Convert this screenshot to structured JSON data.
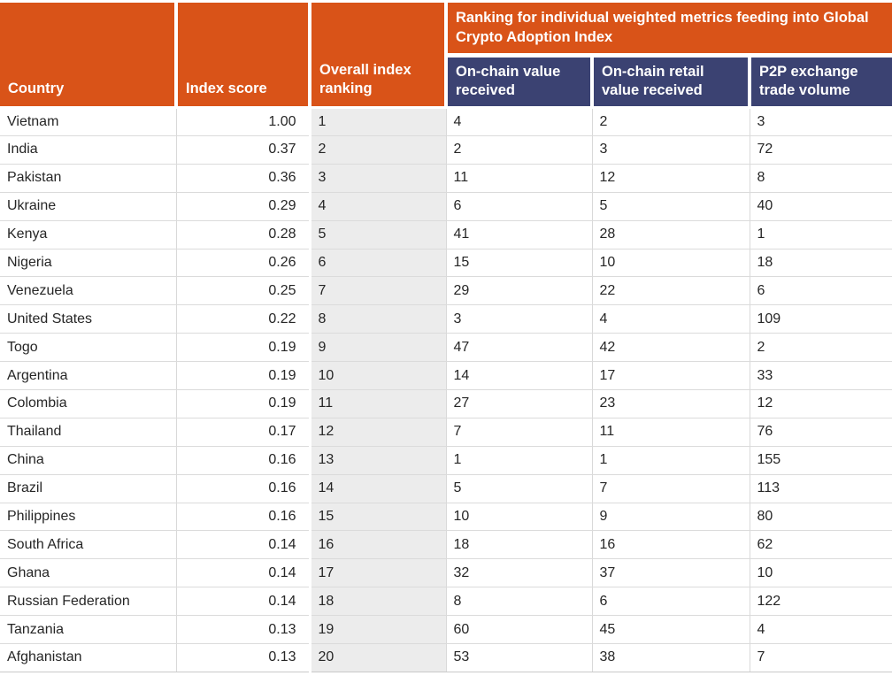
{
  "colors": {
    "header_orange": "#D95318",
    "header_navy": "#3B4272",
    "rank_column_bg": "#ECECEC",
    "row_border": "#DBDBDB",
    "header_text": "#FFFFFF",
    "body_text": "#262626"
  },
  "header": {
    "country": "Country",
    "index_score": "Index score",
    "overall_ranking": "Overall index ranking",
    "banner": "Ranking for individual weighted metrics feeding into Global Crypto Adoption Index",
    "onchain_value": "On-chain value received",
    "onchain_retail": "On-chain retail value received",
    "p2p_volume": "P2P exchange trade volume"
  },
  "chart_data": {
    "type": "table",
    "title": "Ranking for individual weighted metrics feeding into Global Crypto Adoption Index",
    "columns": [
      "Country",
      "Index score",
      "Overall index ranking",
      "On-chain value received",
      "On-chain retail value received",
      "P2P exchange trade volume"
    ],
    "rows": [
      [
        "Vietnam",
        "1.00",
        "1",
        "4",
        "2",
        "3"
      ],
      [
        "India",
        "0.37",
        "2",
        "2",
        "3",
        "72"
      ],
      [
        "Pakistan",
        "0.36",
        "3",
        "11",
        "12",
        "8"
      ],
      [
        "Ukraine",
        "0.29",
        "4",
        "6",
        "5",
        "40"
      ],
      [
        "Kenya",
        "0.28",
        "5",
        "41",
        "28",
        "1"
      ],
      [
        "Nigeria",
        "0.26",
        "6",
        "15",
        "10",
        "18"
      ],
      [
        "Venezuela",
        "0.25",
        "7",
        "29",
        "22",
        "6"
      ],
      [
        "United States",
        "0.22",
        "8",
        "3",
        "4",
        "109"
      ],
      [
        "Togo",
        "0.19",
        "9",
        "47",
        "42",
        "2"
      ],
      [
        "Argentina",
        "0.19",
        "10",
        "14",
        "17",
        "33"
      ],
      [
        "Colombia",
        "0.19",
        "11",
        "27",
        "23",
        "12"
      ],
      [
        "Thailand",
        "0.17",
        "12",
        "7",
        "11",
        "76"
      ],
      [
        "China",
        "0.16",
        "13",
        "1",
        "1",
        "155"
      ],
      [
        "Brazil",
        "0.16",
        "14",
        "5",
        "7",
        "113"
      ],
      [
        "Philippines",
        "0.16",
        "15",
        "10",
        "9",
        "80"
      ],
      [
        "South Africa",
        "0.14",
        "16",
        "18",
        "16",
        "62"
      ],
      [
        "Ghana",
        "0.14",
        "17",
        "32",
        "37",
        "10"
      ],
      [
        "Russian Federation",
        "0.14",
        "18",
        "8",
        "6",
        "122"
      ],
      [
        "Tanzania",
        "0.13",
        "19",
        "60",
        "45",
        "4"
      ],
      [
        "Afghanistan",
        "0.13",
        "20",
        "53",
        "38",
        "7"
      ]
    ]
  }
}
